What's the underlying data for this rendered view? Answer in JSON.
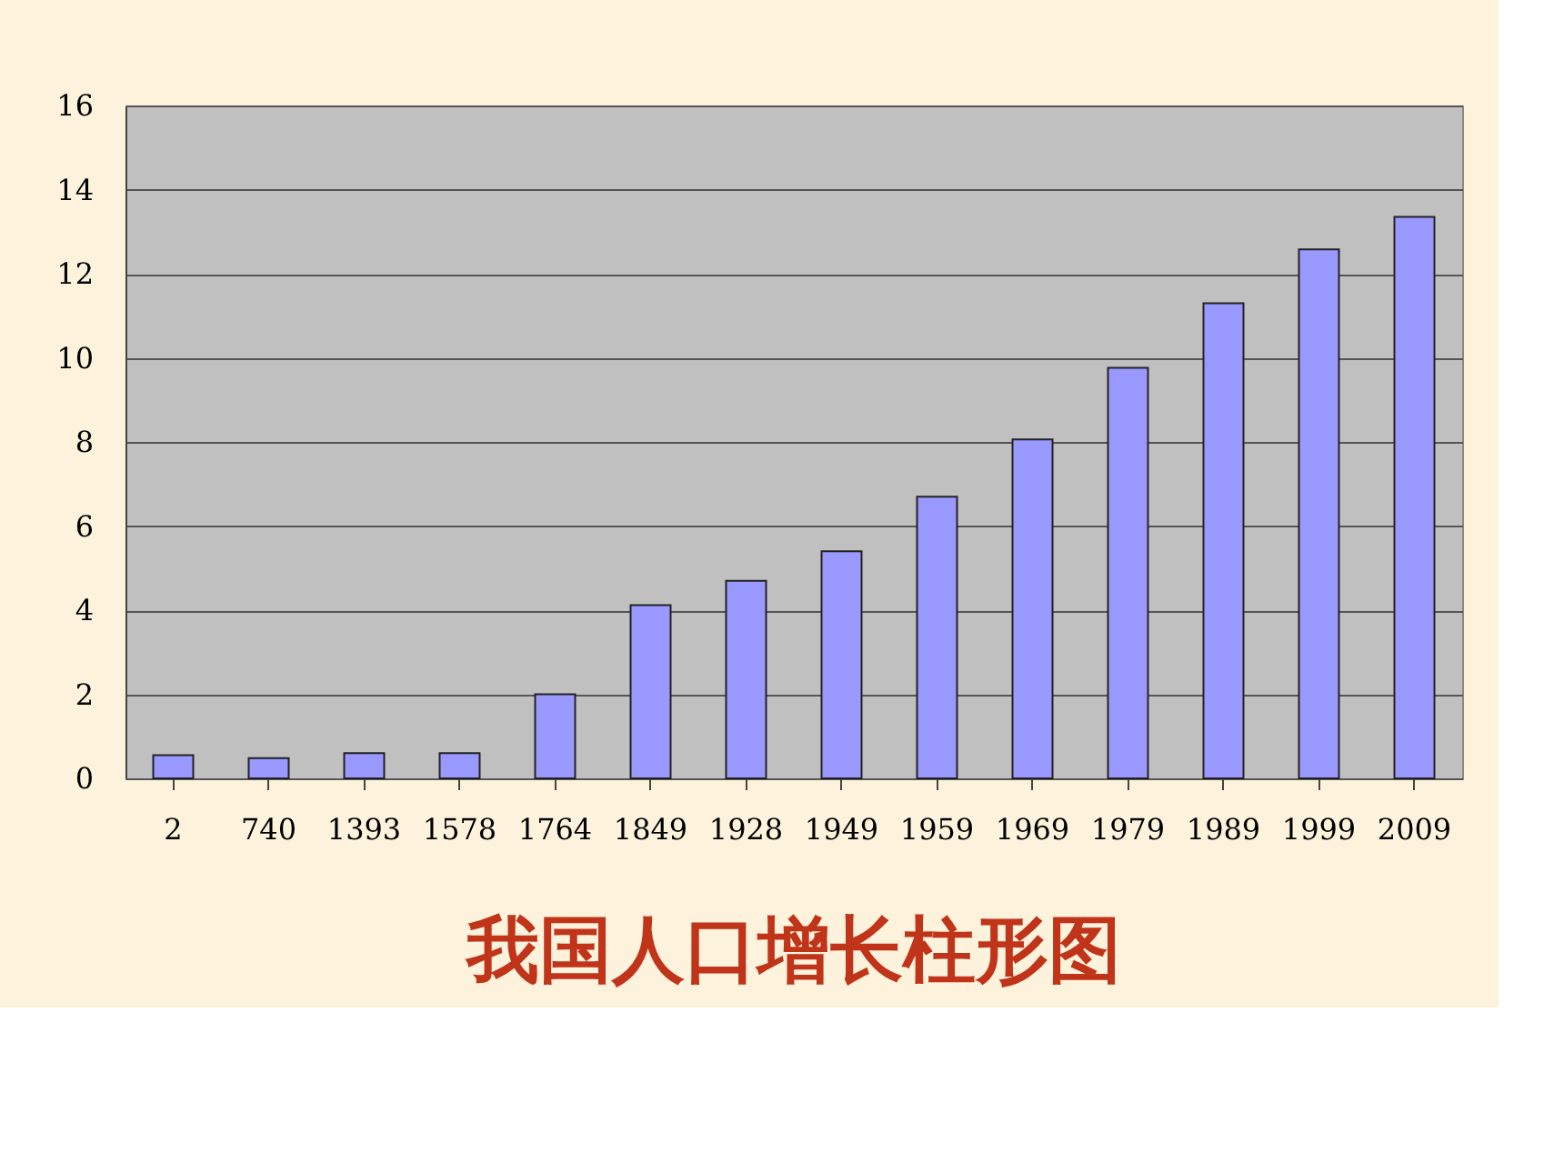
{
  "chart_data": {
    "type": "bar",
    "title": "我国人口增长柱形图",
    "categories": [
      "2",
      "740",
      "1393",
      "1578",
      "1764",
      "1849",
      "1928",
      "1949",
      "1959",
      "1969",
      "1979",
      "1989",
      "1999",
      "2009"
    ],
    "values": [
      0.55,
      0.48,
      0.6,
      0.6,
      2.0,
      4.12,
      4.7,
      5.4,
      6.7,
      8.06,
      9.76,
      11.3,
      12.58,
      13.35
    ],
    "color": "#9999ff",
    "ylim": [
      0,
      16
    ],
    "yticks": [
      0,
      2,
      4,
      6,
      8,
      10,
      12,
      14,
      16
    ],
    "grid": "y"
  }
}
